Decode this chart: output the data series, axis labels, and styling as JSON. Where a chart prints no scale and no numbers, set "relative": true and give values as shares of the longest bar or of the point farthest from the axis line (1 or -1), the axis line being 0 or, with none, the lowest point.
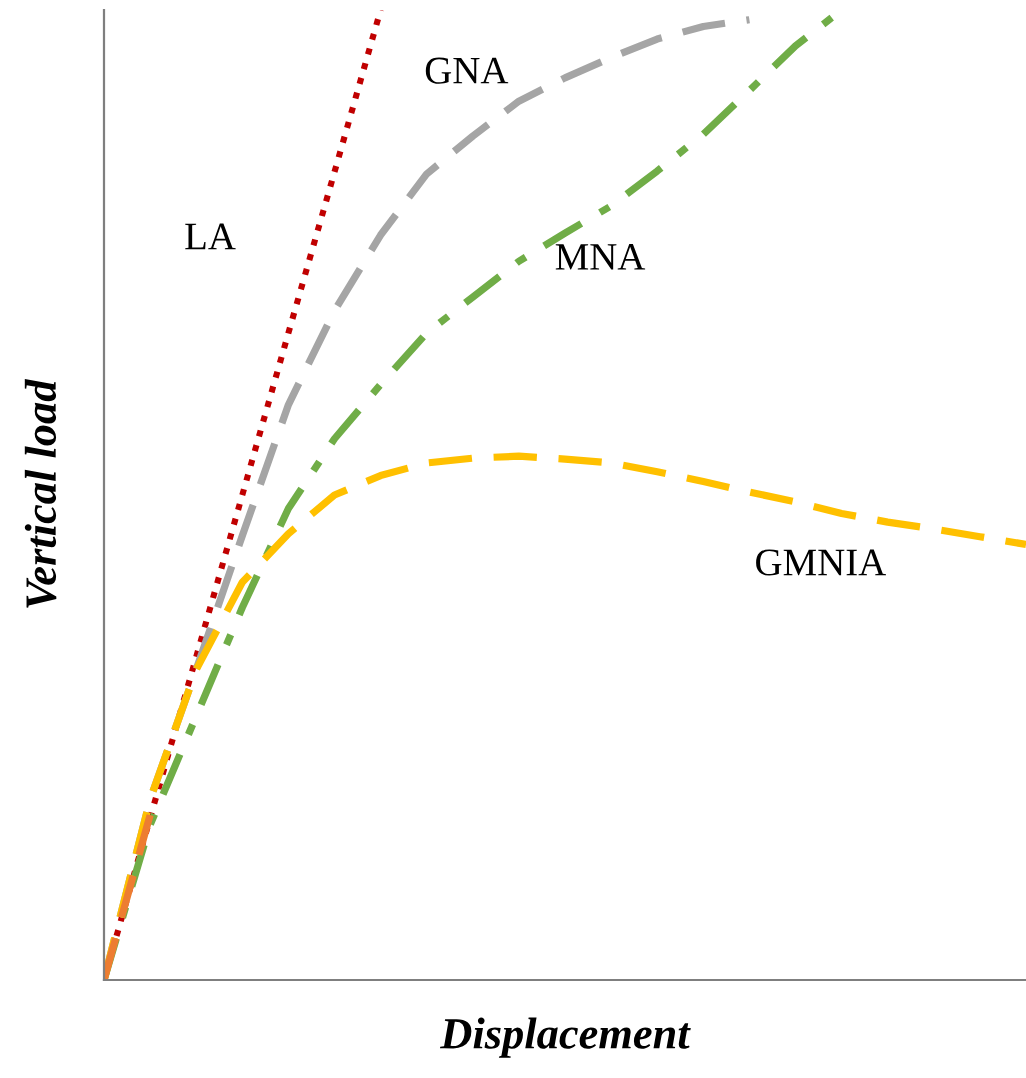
{
  "chart_data": {
    "type": "line",
    "relative": true,
    "xlabel": "Displacement",
    "ylabel": "Vertical load",
    "legend": false,
    "marker": "none",
    "categories": [
      null,
      null,
      null,
      null,
      null,
      null,
      null,
      null,
      null,
      null,
      null,
      null,
      null,
      null,
      null,
      null,
      null,
      null,
      null,
      null,
      null
    ],
    "series": [
      {
        "name": "LA",
        "color": "#c00000",
        "line_style": "dotted",
        "values": [
          0,
          0.167,
          0.333,
          0.5,
          0.667,
          0.833,
          1.0,
          null,
          null,
          null,
          null,
          null,
          null,
          null,
          null,
          null,
          null,
          null,
          null,
          null,
          null
        ]
      },
      {
        "name": "GNA",
        "color": "#a5a5a5",
        "line_style": "dashed",
        "values": [
          0,
          0.186,
          0.32,
          0.458,
          0.593,
          0.69,
          0.768,
          0.831,
          0.87,
          0.906,
          0.93,
          0.951,
          0.97,
          0.983,
          0.99,
          null,
          null,
          null,
          null,
          null,
          null
        ]
      },
      {
        "name": "MNA",
        "color": "#70ad47",
        "line_style": "dashdot",
        "values": [
          0,
          0.16,
          0.272,
          0.384,
          0.486,
          0.558,
          0.614,
          0.667,
          0.704,
          0.741,
          0.77,
          0.798,
          0.834,
          0.872,
          0.917,
          0.963,
          1.0,
          null,
          null,
          null,
          null
        ]
      },
      {
        "name": "GMNIA",
        "color": "#ffc000",
        "line_style": "dashed",
        "values": [
          0,
          0.186,
          0.32,
          0.41,
          0.46,
          0.5,
          0.52,
          0.533,
          0.538,
          0.54,
          0.537,
          0.533,
          0.524,
          0.514,
          0.503,
          0.493,
          0.481,
          0.472,
          0.465,
          0.457,
          0.449
        ]
      },
      {
        "color": "#ed7d31",
        "line_style": "dashed",
        "values": [
          0,
          0.17,
          null,
          null,
          null,
          null,
          null,
          null,
          null,
          null,
          null,
          null,
          null,
          null,
          null,
          null,
          null,
          null,
          null,
          null,
          null
        ]
      }
    ]
  }
}
